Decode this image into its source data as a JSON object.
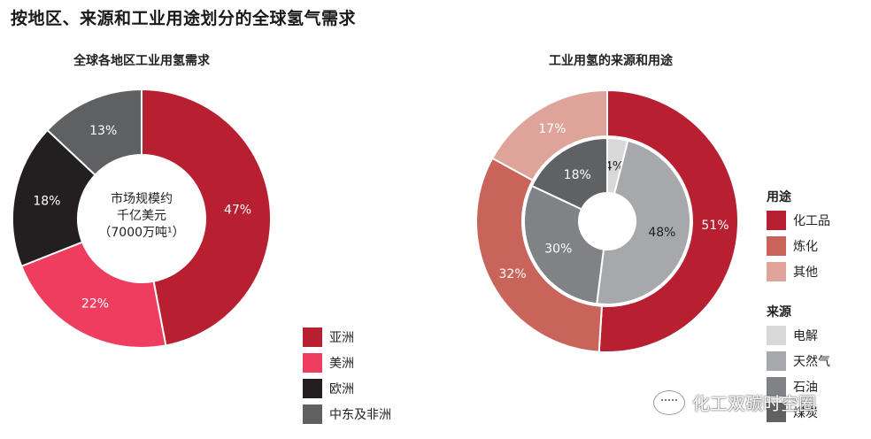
{
  "page": {
    "title": "按地区、来源和工业用途划分的全球氢气需求",
    "watermark": "化工双碳时空圈"
  },
  "chart_data": [
    {
      "type": "pie",
      "title": "全球各地区工业用氢需求",
      "center_text": [
        "市场规模约",
        "千亿美元",
        "（7000万吨¹）"
      ],
      "categories": [
        "亚洲",
        "美洲",
        "欧洲",
        "中东及非洲"
      ],
      "values": [
        47,
        22,
        18,
        13
      ],
      "labels": [
        "47%",
        "22%",
        "18%",
        "13%"
      ],
      "colors": [
        "#b81f31",
        "#ee3d5f",
        "#231f20",
        "#5f6062"
      ],
      "legend": "bottom-right"
    },
    {
      "type": "pie",
      "title": "工业用氢的来源和用途",
      "rings": [
        {
          "name": "用途",
          "categories": [
            "化工品",
            "炼化",
            "其他"
          ],
          "values": [
            51,
            32,
            17
          ],
          "labels": [
            "51%",
            "32%",
            "17%"
          ],
          "colors": [
            "#b81f31",
            "#c8645a",
            "#dea49a"
          ]
        },
        {
          "name": "来源",
          "categories": [
            "电解",
            "天然气",
            "石油",
            "煤炭"
          ],
          "values": [
            4,
            48,
            30,
            18
          ],
          "labels": [
            "4%",
            "48%",
            "30%",
            "18%"
          ],
          "colors": [
            "#d8d8d8",
            "#a7a8ab",
            "#818285",
            "#606163"
          ]
        }
      ],
      "legend": "right"
    }
  ]
}
